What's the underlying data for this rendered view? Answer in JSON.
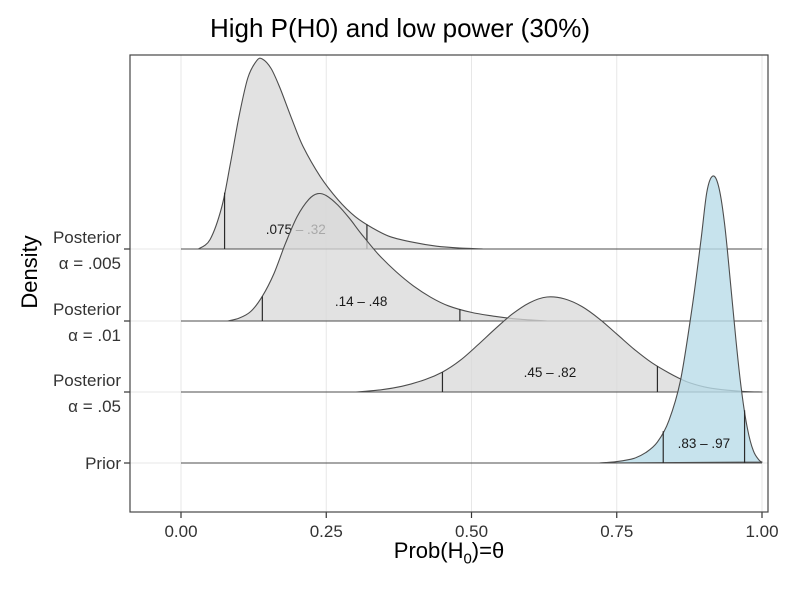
{
  "ui": {
    "title": "High P(H0) and low power (30%)",
    "ylabel": "Density",
    "x_label_parts": {
      "prefix": "Prob(H",
      "sub": "0",
      "suffix": ")=θ"
    }
  },
  "chart_data": {
    "type": "area",
    "variant": "ridgeline_density",
    "title": "High P(H0) and low power (30%)",
    "xlabel": "Prob(H0)=θ",
    "ylabel": "Density",
    "xlim": [
      0,
      1
    ],
    "legend": "none",
    "x_ticks": {
      "values": [
        0,
        0.25,
        0.5,
        0.75,
        1
      ],
      "labels": [
        "0.00",
        "0.25",
        "0.50",
        "0.75",
        "1.00"
      ]
    },
    "categories": [
      "Posterior α = .005",
      "Posterior α = .01",
      "Posterior α = .05",
      "Prior"
    ],
    "style": {
      "grid_color": "#e7e7e7",
      "axis_text_color": "#333333",
      "quantile_line_color": "#2b2b2b",
      "panel_border_color": "#454545"
    },
    "ridges": [
      {
        "id": "posterior-alpha-005",
        "label_lines": [
          "Posterior",
          "α = .005"
        ],
        "fill": "#d8d8d8",
        "fill_opacity": 0.75,
        "stroke": "#4d4d4d",
        "interval": {
          "low": 0.075,
          "high": 0.32,
          "label": ".075 – .32"
        },
        "points": [
          [
            0.03,
            0
          ],
          [
            0.05,
            0.1
          ],
          [
            0.07,
            0.44
          ],
          [
            0.085,
            0.9
          ],
          [
            0.1,
            1.4
          ],
          [
            0.115,
            1.8
          ],
          [
            0.13,
            1.98
          ],
          [
            0.14,
            2.0
          ],
          [
            0.155,
            1.9
          ],
          [
            0.17,
            1.7
          ],
          [
            0.19,
            1.38
          ],
          [
            0.21,
            1.08
          ],
          [
            0.24,
            0.76
          ],
          [
            0.27,
            0.52
          ],
          [
            0.3,
            0.34
          ],
          [
            0.33,
            0.22
          ],
          [
            0.36,
            0.13
          ],
          [
            0.4,
            0.07
          ],
          [
            0.44,
            0.03
          ],
          [
            0.48,
            0.01
          ],
          [
            0.52,
            0
          ]
        ]
      },
      {
        "id": "posterior-alpha-01",
        "label_lines": [
          "Posterior",
          "α = .01"
        ],
        "fill": "#d8d8d8",
        "fill_opacity": 0.75,
        "stroke": "#4d4d4d",
        "interval": {
          "low": 0.14,
          "high": 0.48,
          "label": ".14 – .48"
        },
        "points": [
          [
            0.08,
            0
          ],
          [
            0.1,
            0.03
          ],
          [
            0.12,
            0.1
          ],
          [
            0.14,
            0.26
          ],
          [
            0.16,
            0.5
          ],
          [
            0.18,
            0.82
          ],
          [
            0.2,
            1.1
          ],
          [
            0.22,
            1.28
          ],
          [
            0.235,
            1.34
          ],
          [
            0.25,
            1.32
          ],
          [
            0.27,
            1.22
          ],
          [
            0.29,
            1.08
          ],
          [
            0.31,
            0.92
          ],
          [
            0.34,
            0.7
          ],
          [
            0.37,
            0.52
          ],
          [
            0.4,
            0.37
          ],
          [
            0.43,
            0.25
          ],
          [
            0.46,
            0.16
          ],
          [
            0.5,
            0.09
          ],
          [
            0.54,
            0.05
          ],
          [
            0.58,
            0.02
          ],
          [
            0.63,
            0
          ]
        ]
      },
      {
        "id": "posterior-alpha-05",
        "label_lines": [
          "Posterior",
          "α = .05"
        ],
        "fill": "#d8d8d8",
        "fill_opacity": 0.75,
        "stroke": "#4d4d4d",
        "interval": {
          "low": 0.45,
          "high": 0.82,
          "label": ".45 – .82"
        },
        "points": [
          [
            0.3,
            0
          ],
          [
            0.34,
            0.02
          ],
          [
            0.38,
            0.06
          ],
          [
            0.42,
            0.13
          ],
          [
            0.45,
            0.21
          ],
          [
            0.48,
            0.33
          ],
          [
            0.51,
            0.49
          ],
          [
            0.54,
            0.66
          ],
          [
            0.57,
            0.82
          ],
          [
            0.6,
            0.94
          ],
          [
            0.63,
            1.0
          ],
          [
            0.66,
            0.98
          ],
          [
            0.69,
            0.9
          ],
          [
            0.72,
            0.77
          ],
          [
            0.75,
            0.61
          ],
          [
            0.78,
            0.45
          ],
          [
            0.81,
            0.31
          ],
          [
            0.84,
            0.2
          ],
          [
            0.87,
            0.11
          ],
          [
            0.9,
            0.055
          ],
          [
            0.93,
            0.025
          ],
          [
            0.97,
            0.005
          ],
          [
            1.0,
            0
          ]
        ]
      },
      {
        "id": "prior",
        "label_lines": [
          "Prior"
        ],
        "fill": "#b9dce9",
        "fill_opacity": 0.8,
        "stroke": "#4d4d4d",
        "interval": {
          "low": 0.83,
          "high": 0.97,
          "label": ".83 – .97"
        },
        "points": [
          [
            0.72,
            0
          ],
          [
            0.75,
            0.015
          ],
          [
            0.78,
            0.05
          ],
          [
            0.8,
            0.11
          ],
          [
            0.82,
            0.22
          ],
          [
            0.84,
            0.45
          ],
          [
            0.86,
            0.88
          ],
          [
            0.88,
            1.65
          ],
          [
            0.895,
            2.35
          ],
          [
            0.905,
            2.85
          ],
          [
            0.915,
            3.02
          ],
          [
            0.925,
            2.92
          ],
          [
            0.935,
            2.55
          ],
          [
            0.945,
            1.95
          ],
          [
            0.955,
            1.3
          ],
          [
            0.965,
            0.75
          ],
          [
            0.975,
            0.36
          ],
          [
            0.985,
            0.13
          ],
          [
            0.995,
            0.03
          ],
          [
            1.0,
            0.01
          ]
        ]
      }
    ]
  }
}
